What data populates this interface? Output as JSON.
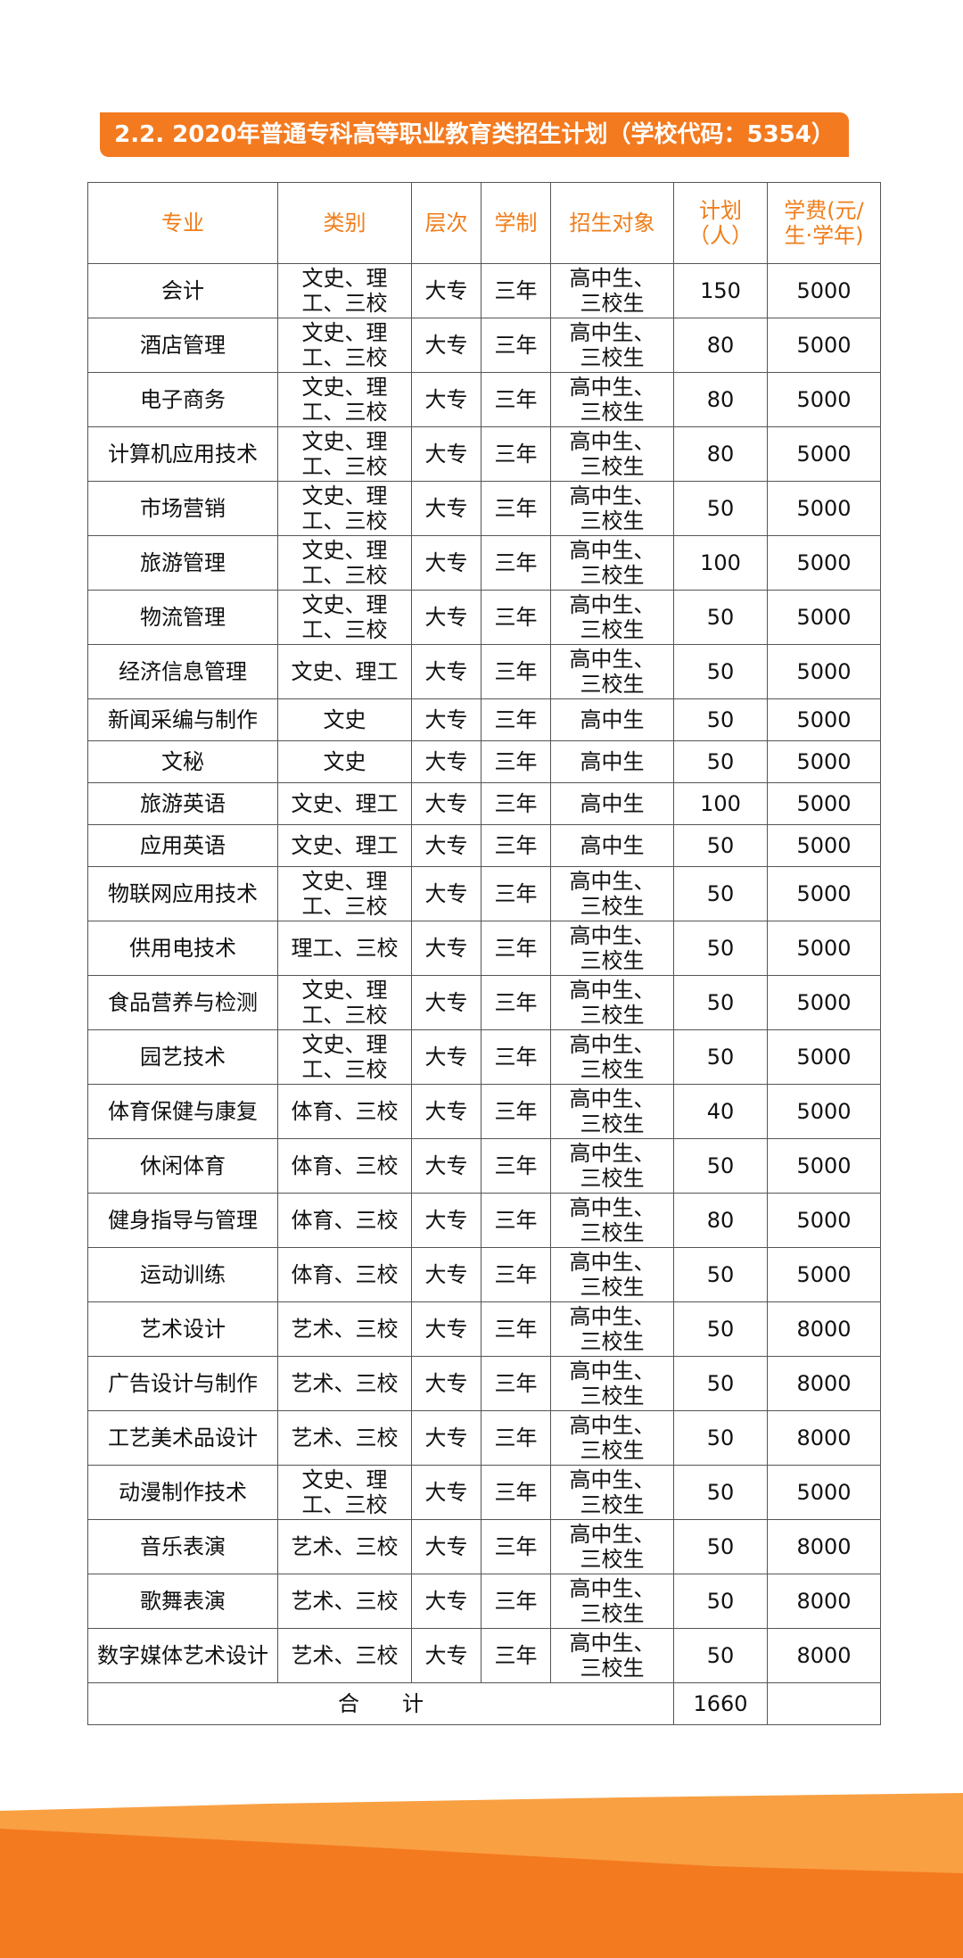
{
  "title": "2.2. 2020年普通专科高等职业教育类招生计划（学校代码：5354）",
  "table": {
    "header": [
      "专业",
      "类别",
      "层次",
      "学制",
      "招生对象",
      "计划（人）",
      "学费(元/生·学年)"
    ],
    "rows": [
      [
        "会计",
        "文史、理工、三校",
        "大专",
        "三年",
        "高中生、三校生",
        "150",
        "5000"
      ],
      [
        "酒店管理",
        "文史、理工、三校",
        "大专",
        "三年",
        "高中生、三校生",
        "80",
        "5000"
      ],
      [
        "电子商务",
        "文史、理工、三校",
        "大专",
        "三年",
        "高中生、三校生",
        "80",
        "5000"
      ],
      [
        "计算机应用技术",
        "文史、理工、三校",
        "大专",
        "三年",
        "高中生、三校生",
        "80",
        "5000"
      ],
      [
        "市场营销",
        "文史、理工、三校",
        "大专",
        "三年",
        "高中生、三校生",
        "50",
        "5000"
      ],
      [
        "旅游管理",
        "文史、理工、三校",
        "大专",
        "三年",
        "高中生、三校生",
        "100",
        "5000"
      ],
      [
        "物流管理",
        "文史、理工、三校",
        "大专",
        "三年",
        "高中生、三校生",
        "50",
        "5000"
      ],
      [
        "经济信息管理",
        "文史、理工",
        "大专",
        "三年",
        "高中生、三校生",
        "50",
        "5000"
      ],
      [
        "新闻采编与制作",
        "文史",
        "大专",
        "三年",
        "高中生",
        "50",
        "5000"
      ],
      [
        "文秘",
        "文史",
        "大专",
        "三年",
        "高中生",
        "50",
        "5000"
      ],
      [
        "旅游英语",
        "文史、理工",
        "大专",
        "三年",
        "高中生",
        "100",
        "5000"
      ],
      [
        "应用英语",
        "文史、理工",
        "大专",
        "三年",
        "高中生",
        "50",
        "5000"
      ],
      [
        "物联网应用技术",
        "文史、理工、三校",
        "大专",
        "三年",
        "高中生、三校生",
        "50",
        "5000"
      ],
      [
        "供用电技术",
        "理工、三校",
        "大专",
        "三年",
        "高中生、三校生",
        "50",
        "5000"
      ],
      [
        "食品营养与检测",
        "文史、理工、三校",
        "大专",
        "三年",
        "高中生、三校生",
        "50",
        "5000"
      ],
      [
        "园艺技术",
        "文史、理工、三校",
        "大专",
        "三年",
        "高中生、三校生",
        "50",
        "5000"
      ],
      [
        "体育保健与康复",
        "体育、三校",
        "大专",
        "三年",
        "高中生、三校生",
        "40",
        "5000"
      ],
      [
        "休闲体育",
        "体育、三校",
        "大专",
        "三年",
        "高中生、三校生",
        "50",
        "5000"
      ],
      [
        "健身指导与管理",
        "体育、三校",
        "大专",
        "三年",
        "高中生、三校生",
        "80",
        "5000"
      ],
      [
        "运动训练",
        "体育、三校",
        "大专",
        "三年",
        "高中生、三校生",
        "50",
        "5000"
      ],
      [
        "艺术设计",
        "艺术、三校",
        "大专",
        "三年",
        "高中生、三校生",
        "50",
        "8000"
      ],
      [
        "广告设计与制作",
        "艺术、三校",
        "大专",
        "三年",
        "高中生、三校生",
        "50",
        "8000"
      ],
      [
        "工艺美术品设计",
        "艺术、三校",
        "大专",
        "三年",
        "高中生、三校生",
        "50",
        "8000"
      ],
      [
        "动漫制作技术",
        "文史、理工、三校",
        "大专",
        "三年",
        "高中生、三校生",
        "50",
        "5000"
      ],
      [
        "音乐表演",
        "艺术、三校",
        "大专",
        "三年",
        "高中生、三校生",
        "50",
        "8000"
      ],
      [
        "歌舞表演",
        "艺术、三校",
        "大专",
        "三年",
        "高中生、三校生",
        "50",
        "8000"
      ],
      [
        "数字媒体艺术设计",
        "艺术、三校",
        "大专",
        "三年",
        "高中生、三校生",
        "50",
        "8000"
      ]
    ],
    "total": {
      "label": "合　　计",
      "plan": "1660"
    }
  }
}
